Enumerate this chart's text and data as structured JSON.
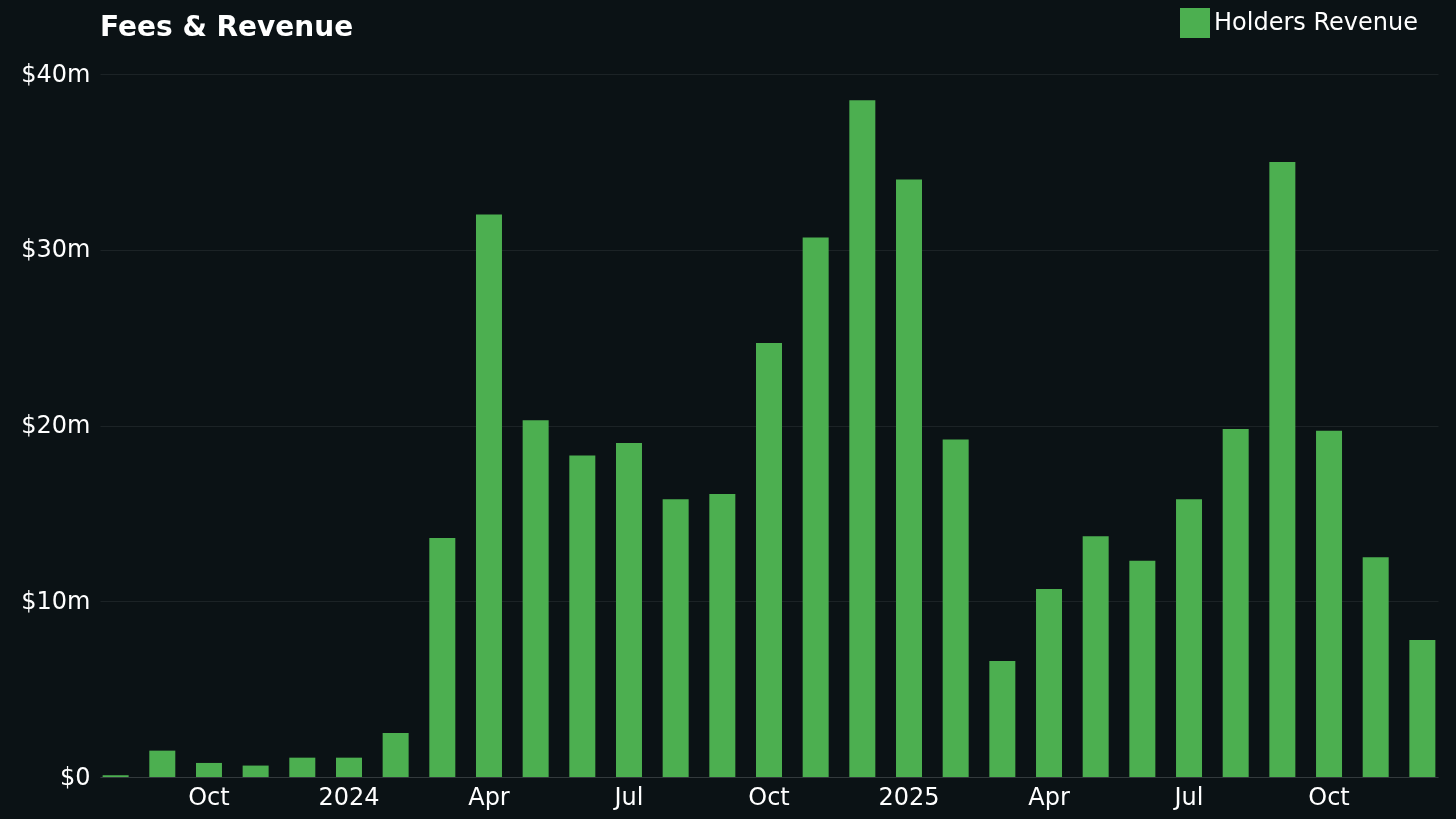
{
  "chart_data": {
    "type": "bar",
    "title": "Fees & Revenue",
    "categories": [
      null,
      null,
      "Oct",
      null,
      null,
      "2024",
      null,
      null,
      "Apr",
      null,
      null,
      "Jul",
      null,
      null,
      "Oct",
      null,
      null,
      "2025",
      null,
      null,
      "Apr",
      null,
      null,
      "Jul",
      null,
      null,
      "Oct",
      null,
      null
    ],
    "series": [
      {
        "name": "Holders Revenue",
        "color": "#4caf50",
        "values": [
          0.1,
          1.5,
          0.8,
          0.65,
          1.1,
          1.1,
          2.5,
          13.6,
          32.0,
          20.3,
          18.3,
          19.0,
          15.8,
          16.1,
          24.7,
          30.7,
          38.5,
          34.0,
          19.2,
          6.6,
          10.7,
          13.7,
          12.3,
          15.8,
          19.8,
          35.0,
          19.7,
          12.5,
          7.8
        ]
      }
    ],
    "ylim": [
      0,
      40
    ],
    "yticks": [
      {
        "value": 0,
        "label": "$0"
      },
      {
        "value": 10,
        "label": "$10m"
      },
      {
        "value": 20,
        "label": "$20m"
      },
      {
        "value": 30,
        "label": "$30m"
      },
      {
        "value": 40,
        "label": "$40m"
      }
    ],
    "grid": "y",
    "legend": "top right"
  }
}
